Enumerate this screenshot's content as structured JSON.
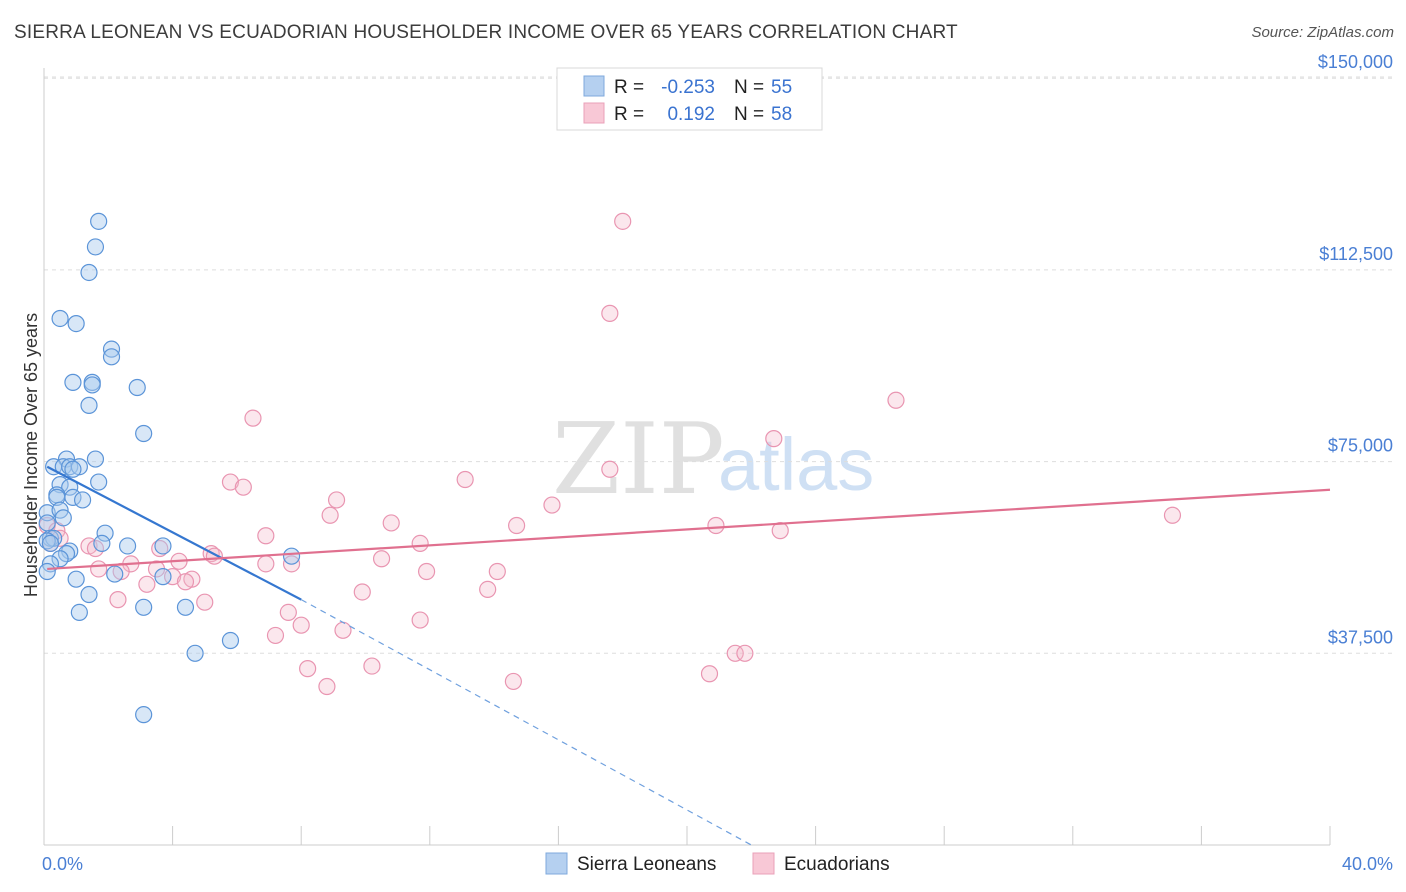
{
  "header": {
    "title": "SIERRA LEONEAN VS ECUADORIAN HOUSEHOLDER INCOME OVER 65 YEARS CORRELATION CHART",
    "source": "Source: ZipAtlas.com"
  },
  "watermark": {
    "zip": "ZIP",
    "atlas": "atlas"
  },
  "colors": {
    "blue": "#4a90d9",
    "blue_fill": "#a9c9ee",
    "pink": "#e8799e",
    "pink_fill": "#f4b9cc",
    "grid": "#dddddd",
    "tick_text": "#4a7fd4"
  },
  "legend": {
    "rows": [
      {
        "r_label": "R =",
        "r_value": "-0.253",
        "n_label": "N =",
        "n_value": "55"
      },
      {
        "r_label": "R =",
        "r_value": "0.192",
        "n_label": "N =",
        "n_value": "58"
      }
    ]
  },
  "chart_data": {
    "type": "scatter",
    "title": "SIERRA LEONEAN VS ECUADORIAN HOUSEHOLDER INCOME OVER 65 YEARS CORRELATION CHART",
    "xlabel": "",
    "ylabel": "Householder Income Over 65 years",
    "xlim": [
      0,
      40
    ],
    "ylim": [
      0,
      152000
    ],
    "x_tick_labels": {
      "min": "0.0%",
      "max": "40.0%"
    },
    "y_ticks": [
      {
        "value": 37500,
        "label": "$37,500"
      },
      {
        "value": 75000,
        "label": "$75,000"
      },
      {
        "value": 112500,
        "label": "$112,500"
      },
      {
        "value": 150000,
        "label": "$150,000"
      }
    ],
    "grid": true,
    "legend_position": "top-center",
    "series": [
      {
        "name": "Sierra Leoneans",
        "color": "#4a90d9",
        "r": -0.253,
        "n": 55,
        "trend": {
          "x0": 0.1,
          "y0": 74000,
          "x1": 8.0,
          "y1": 48000,
          "dash_to_x": 22.0,
          "dash_to_y": 0
        },
        "points": [
          [
            1.7,
            122000
          ],
          [
            1.6,
            117000
          ],
          [
            1.4,
            112000
          ],
          [
            0.5,
            103000
          ],
          [
            1.0,
            102000
          ],
          [
            2.1,
            97000
          ],
          [
            2.1,
            95500
          ],
          [
            0.9,
            90500
          ],
          [
            1.5,
            90500
          ],
          [
            1.5,
            90000
          ],
          [
            2.9,
            89500
          ],
          [
            1.4,
            86000
          ],
          [
            3.1,
            80500
          ],
          [
            0.7,
            75500
          ],
          [
            1.6,
            75500
          ],
          [
            0.3,
            74000
          ],
          [
            0.6,
            74000
          ],
          [
            0.8,
            74000
          ],
          [
            1.1,
            74000
          ],
          [
            0.9,
            73500
          ],
          [
            1.7,
            71000
          ],
          [
            0.5,
            70500
          ],
          [
            0.8,
            70000
          ],
          [
            0.4,
            68500
          ],
          [
            0.4,
            68000
          ],
          [
            0.9,
            68000
          ],
          [
            1.2,
            67500
          ],
          [
            0.1,
            65000
          ],
          [
            0.5,
            65500
          ],
          [
            0.6,
            64000
          ],
          [
            0.1,
            63000
          ],
          [
            1.9,
            61000
          ],
          [
            0.2,
            60000
          ],
          [
            0.3,
            60000
          ],
          [
            0.1,
            59500
          ],
          [
            0.2,
            59000
          ],
          [
            1.8,
            59000
          ],
          [
            2.6,
            58500
          ],
          [
            0.8,
            57500
          ],
          [
            0.7,
            57000
          ],
          [
            0.5,
            56000
          ],
          [
            3.7,
            58500
          ],
          [
            7.7,
            56500
          ],
          [
            0.2,
            55000
          ],
          [
            0.1,
            53500
          ],
          [
            2.2,
            53000
          ],
          [
            1.0,
            52000
          ],
          [
            3.7,
            52500
          ],
          [
            1.4,
            49000
          ],
          [
            3.1,
            46500
          ],
          [
            4.4,
            46500
          ],
          [
            1.1,
            45500
          ],
          [
            5.8,
            40000
          ],
          [
            4.7,
            37500
          ],
          [
            3.1,
            25500
          ]
        ]
      },
      {
        "name": "Ecuadorians",
        "color": "#e8799e",
        "r": 0.192,
        "n": 58,
        "trend": {
          "x0": 0.1,
          "y0": 54000,
          "x1": 40.0,
          "y1": 69500
        },
        "points": [
          [
            18.0,
            122000
          ],
          [
            17.6,
            104000
          ],
          [
            26.5,
            87000
          ],
          [
            6.5,
            83500
          ],
          [
            22.7,
            79500
          ],
          [
            17.6,
            73500
          ],
          [
            13.1,
            71500
          ],
          [
            5.8,
            71000
          ],
          [
            6.2,
            70000
          ],
          [
            9.1,
            67500
          ],
          [
            15.8,
            66500
          ],
          [
            8.9,
            64500
          ],
          [
            35.1,
            64500
          ],
          [
            10.8,
            63000
          ],
          [
            14.7,
            62500
          ],
          [
            20.9,
            62500
          ],
          [
            0.1,
            62500
          ],
          [
            0.4,
            61500
          ],
          [
            0.5,
            60000
          ],
          [
            6.9,
            60500
          ],
          [
            22.9,
            61500
          ],
          [
            11.7,
            59000
          ],
          [
            0.2,
            59000
          ],
          [
            1.4,
            58500
          ],
          [
            1.6,
            58000
          ],
          [
            3.6,
            58000
          ],
          [
            5.2,
            57000
          ],
          [
            5.3,
            56500
          ],
          [
            10.5,
            56000
          ],
          [
            4.2,
            55500
          ],
          [
            2.7,
            55000
          ],
          [
            6.9,
            55000
          ],
          [
            7.7,
            55000
          ],
          [
            1.7,
            54000
          ],
          [
            2.4,
            53500
          ],
          [
            3.5,
            54000
          ],
          [
            11.9,
            53500
          ],
          [
            14.1,
            53500
          ],
          [
            4.6,
            52000
          ],
          [
            4.0,
            52500
          ],
          [
            4.4,
            51500
          ],
          [
            3.2,
            51000
          ],
          [
            9.9,
            49500
          ],
          [
            13.8,
            50000
          ],
          [
            2.3,
            48000
          ],
          [
            5.0,
            47500
          ],
          [
            7.6,
            45500
          ],
          [
            11.7,
            44000
          ],
          [
            8.0,
            43000
          ],
          [
            9.3,
            42000
          ],
          [
            7.2,
            41000
          ],
          [
            21.5,
            37500
          ],
          [
            21.8,
            37500
          ],
          [
            8.2,
            34500
          ],
          [
            10.2,
            35000
          ],
          [
            20.7,
            33500
          ],
          [
            8.8,
            31000
          ],
          [
            14.6,
            32000
          ]
        ]
      }
    ]
  }
}
